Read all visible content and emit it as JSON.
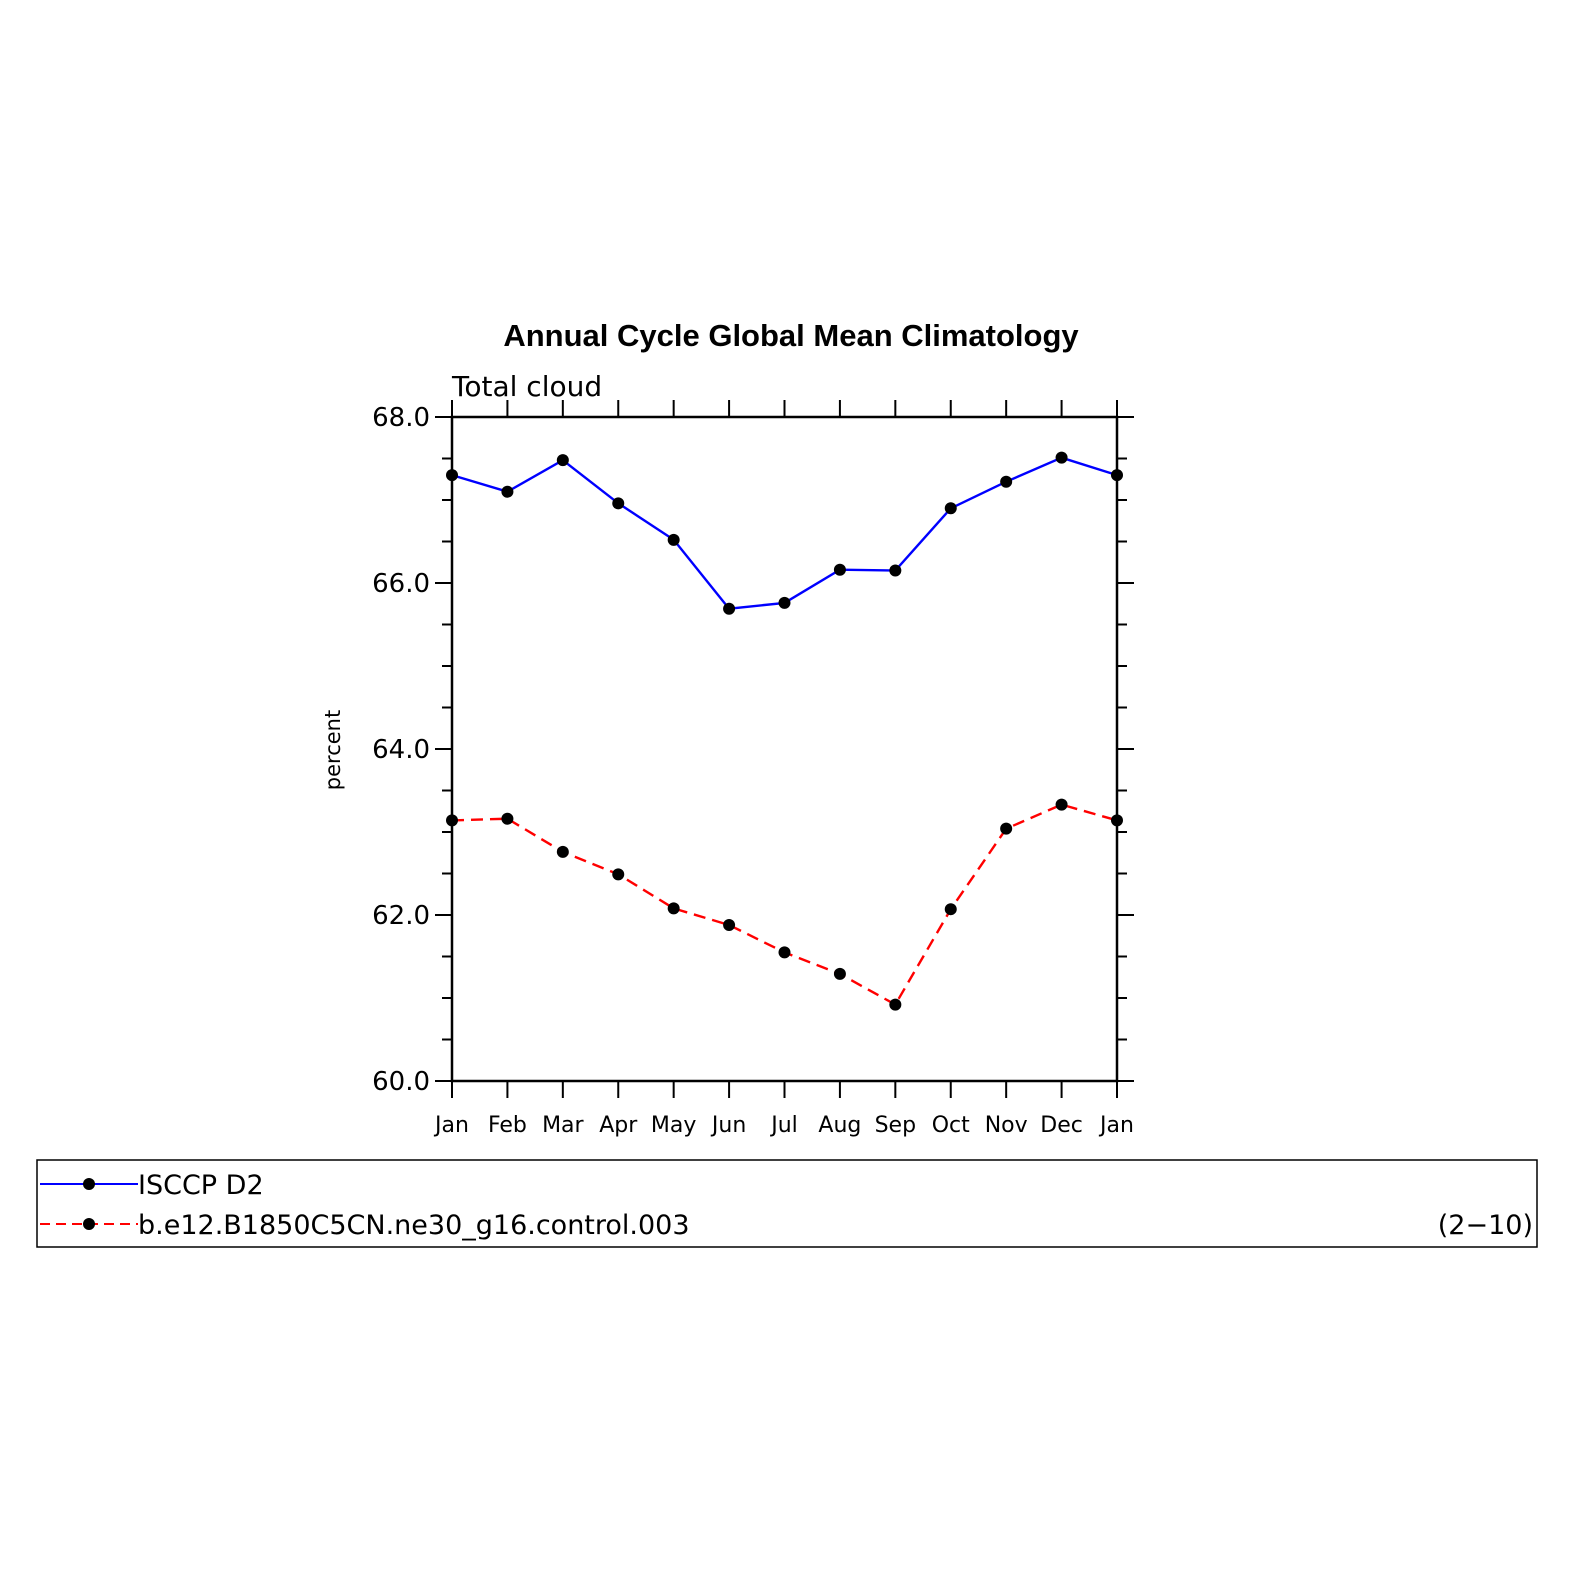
{
  "chart_data": {
    "type": "line",
    "title": "Annual Cycle Global Mean Climatology",
    "subtitle": "Total cloud",
    "ylabel": "percent",
    "ylim": [
      60.0,
      68.0
    ],
    "yticks": [
      "60.0",
      "62.0",
      "64.0",
      "66.0",
      "68.0"
    ],
    "categories": [
      "Jan",
      "Feb",
      "Mar",
      "Apr",
      "May",
      "Jun",
      "Jul",
      "Aug",
      "Sep",
      "Oct",
      "Nov",
      "Dec",
      "Jan"
    ],
    "series": [
      {
        "name": "ISCCP D2",
        "color": "#0000ff",
        "dash": "solid",
        "values": [
          67.3,
          67.1,
          67.48,
          66.96,
          66.52,
          65.69,
          65.76,
          66.16,
          66.15,
          66.9,
          67.22,
          67.51,
          67.3
        ]
      },
      {
        "name": "b.e12.B1850C5CN.ne30_g16.control.003",
        "color": "#ff0000",
        "dash": "dashed",
        "values": [
          63.14,
          63.16,
          62.76,
          62.49,
          62.08,
          61.88,
          61.55,
          61.29,
          60.92,
          62.07,
          63.04,
          63.33,
          63.14
        ]
      }
    ],
    "legend_position": "bottom",
    "legend_note": "(2−10)",
    "marker_color": "#000000"
  }
}
